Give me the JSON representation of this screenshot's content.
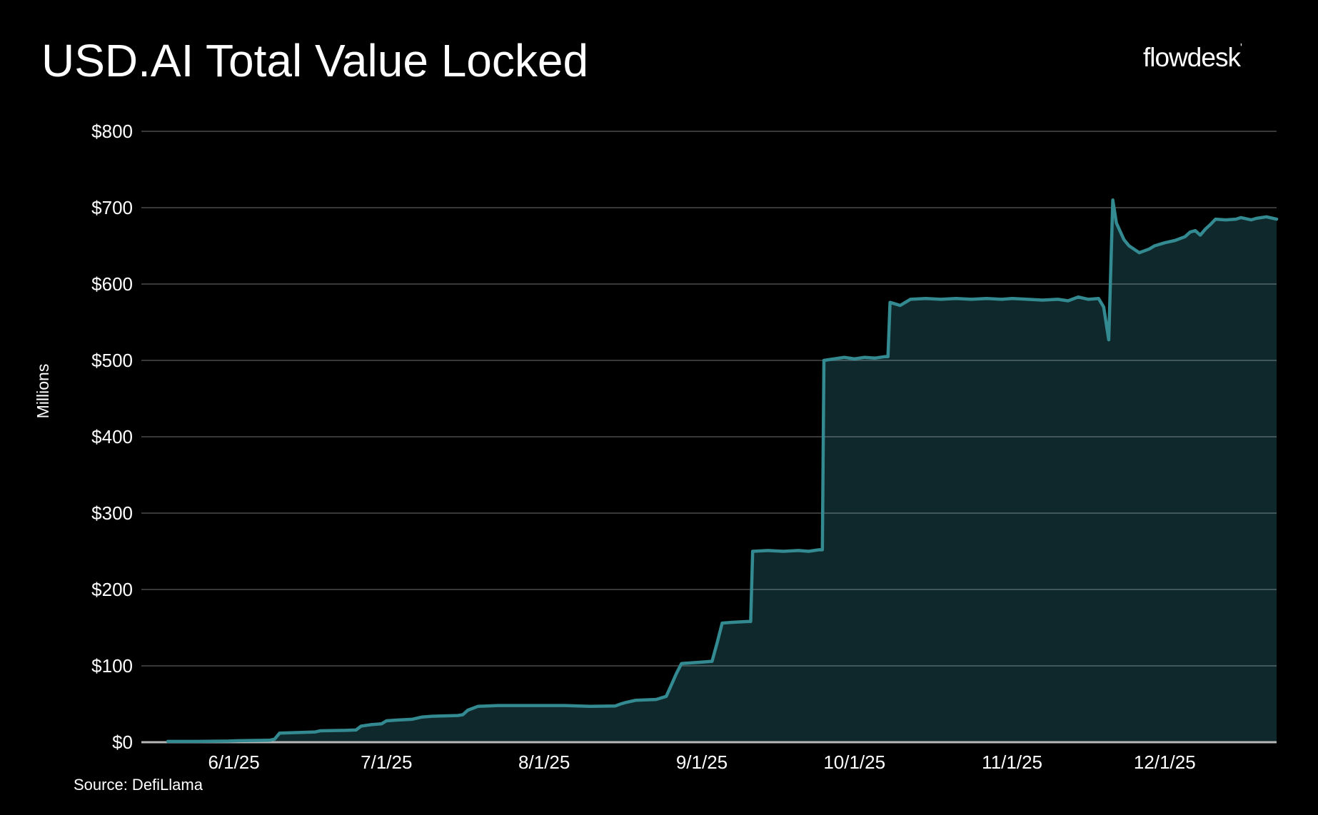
{
  "header": {
    "title": "USD.AI Total Value Locked",
    "logo_text": "flowdesk",
    "logo_mark": "'"
  },
  "footer": {
    "source_label": "Source: DefiLlama"
  },
  "colors": {
    "background": "#000000",
    "text": "#ffffff",
    "line": "#338a91",
    "area_fill": "#0e282b",
    "gridline": "rgba(255,255,255,0.22)",
    "zero_axis": "#b8b8b8"
  },
  "chart_data": {
    "type": "area",
    "title": "USD.AI Total Value Locked",
    "ylabel": "Millions",
    "xlabel": "",
    "ylim": [
      0,
      800
    ],
    "y_tick_interval": 100,
    "y_ticks": [
      {
        "value": 0,
        "label": "$0"
      },
      {
        "value": 100,
        "label": "$100"
      },
      {
        "value": 200,
        "label": "$200"
      },
      {
        "value": 300,
        "label": "$300"
      },
      {
        "value": 400,
        "label": "$400"
      },
      {
        "value": 500,
        "label": "$500"
      },
      {
        "value": 600,
        "label": "$600"
      },
      {
        "value": 700,
        "label": "$700"
      },
      {
        "value": 800,
        "label": "$800"
      }
    ],
    "x_unit": "days_since_first_point",
    "x_range_days": [
      0,
      218
    ],
    "x_ticks": [
      {
        "day": 13,
        "label": "6/1/25"
      },
      {
        "day": 43,
        "label": "7/1/25"
      },
      {
        "day": 74,
        "label": "8/1/25"
      },
      {
        "day": 105,
        "label": "9/1/25"
      },
      {
        "day": 135,
        "label": "10/1/25"
      },
      {
        "day": 166,
        "label": "11/1/25"
      },
      {
        "day": 196,
        "label": "12/1/25"
      }
    ],
    "grid": true,
    "legend": false,
    "series": [
      {
        "name": "Total Value Locked ($M)",
        "points": [
          [
            0,
            1
          ],
          [
            6,
            1
          ],
          [
            12,
            1.5
          ],
          [
            14,
            2
          ],
          [
            20,
            2.5
          ],
          [
            21,
            4
          ],
          [
            22,
            12
          ],
          [
            27,
            13
          ],
          [
            29,
            13.5
          ],
          [
            30,
            15
          ],
          [
            35,
            15.5
          ],
          [
            37,
            16
          ],
          [
            38,
            21
          ],
          [
            40,
            23
          ],
          [
            42,
            24
          ],
          [
            43,
            28
          ],
          [
            45,
            29
          ],
          [
            48,
            30
          ],
          [
            50,
            33
          ],
          [
            52,
            34
          ],
          [
            57,
            35
          ],
          [
            58,
            36
          ],
          [
            59,
            42
          ],
          [
            61,
            47
          ],
          [
            65,
            48
          ],
          [
            78,
            48
          ],
          [
            83,
            47
          ],
          [
            88,
            47.5
          ],
          [
            89,
            50
          ],
          [
            90,
            52
          ],
          [
            92,
            55
          ],
          [
            96,
            56
          ],
          [
            98,
            60
          ],
          [
            99,
            75
          ],
          [
            100,
            90
          ],
          [
            101,
            103
          ],
          [
            103,
            104
          ],
          [
            105,
            105
          ],
          [
            107,
            106
          ],
          [
            108,
            130
          ],
          [
            109,
            156
          ],
          [
            111,
            157
          ],
          [
            114,
            158
          ],
          [
            114.6,
            158
          ],
          [
            115,
            250
          ],
          [
            118,
            251
          ],
          [
            121,
            250
          ],
          [
            124,
            251
          ],
          [
            126,
            250
          ],
          [
            128,
            252
          ],
          [
            128.7,
            252
          ],
          [
            129,
            500
          ],
          [
            131,
            502
          ],
          [
            133,
            504
          ],
          [
            135,
            502
          ],
          [
            137,
            504
          ],
          [
            139,
            503
          ],
          [
            141,
            505
          ],
          [
            141.6,
            505
          ],
          [
            142,
            576
          ],
          [
            143,
            574
          ],
          [
            144,
            572
          ],
          [
            146,
            580
          ],
          [
            149,
            581
          ],
          [
            152,
            580
          ],
          [
            155,
            581
          ],
          [
            158,
            580
          ],
          [
            161,
            581
          ],
          [
            164,
            580
          ],
          [
            166,
            581
          ],
          [
            169,
            580
          ],
          [
            172,
            579
          ],
          [
            175,
            580
          ],
          [
            177,
            578
          ],
          [
            179,
            583
          ],
          [
            181,
            580
          ],
          [
            183,
            581
          ],
          [
            184,
            570
          ],
          [
            185,
            527
          ],
          [
            185.8,
            710
          ],
          [
            186.5,
            680
          ],
          [
            188,
            658
          ],
          [
            189,
            650
          ],
          [
            191,
            641
          ],
          [
            193,
            646
          ],
          [
            194,
            650
          ],
          [
            196,
            654
          ],
          [
            198,
            657
          ],
          [
            200,
            662
          ],
          [
            201,
            668
          ],
          [
            202,
            670
          ],
          [
            203,
            664
          ],
          [
            204,
            672
          ],
          [
            205,
            678
          ],
          [
            206,
            685
          ],
          [
            208,
            684
          ],
          [
            210,
            685
          ],
          [
            211,
            687
          ],
          [
            213,
            684
          ],
          [
            214,
            686
          ],
          [
            216,
            688
          ],
          [
            218,
            685
          ]
        ]
      }
    ]
  }
}
